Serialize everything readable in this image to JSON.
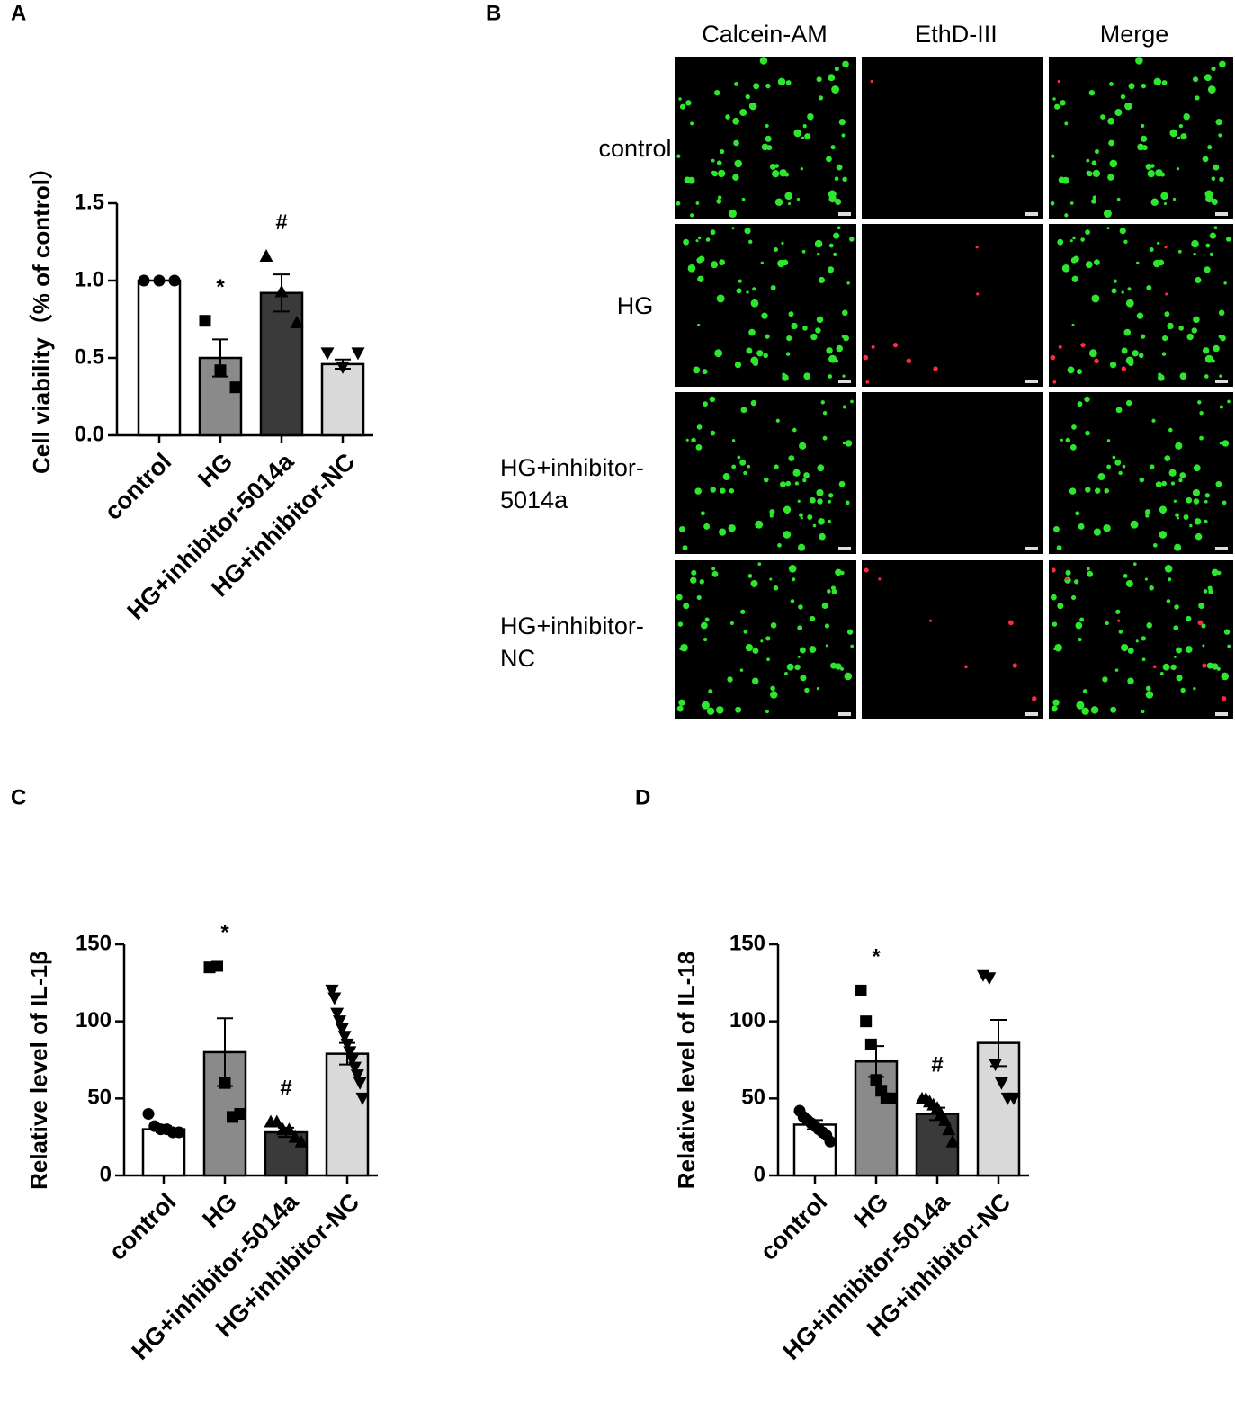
{
  "panels": [
    "A",
    "B",
    "C",
    "D"
  ],
  "chart_data": [
    {
      "type": "bar",
      "ylabel": "Cell viability（% of control）",
      "categories": [
        "control",
        "HG",
        "HG+inhibitor-5014a",
        "HG+inhibitor-NC"
      ],
      "values": [
        1.0,
        0.5,
        0.92,
        0.46
      ],
      "errors": [
        0,
        0.12,
        0.12,
        0.03
      ],
      "points": [
        [
          1,
          1,
          1
        ],
        [
          0.74,
          0.42,
          0.31
        ],
        [
          1.16,
          0.93,
          0.73
        ],
        [
          0.53,
          0.44,
          0.53
        ]
      ],
      "colors": [
        "#ffffff",
        "#8a8a8a",
        "#3a3a3a",
        "#d9d9d9"
      ],
      "markers": [
        "circle",
        "square",
        "triangle-up",
        "triangle-down"
      ],
      "bar_labels": [
        null,
        "*",
        "#",
        null
      ],
      "ylim": [
        0,
        1.5
      ],
      "yticks": [
        {
          "value": 0,
          "label": "0.0"
        },
        {
          "value": 0.5,
          "label": "0.5"
        },
        {
          "value": 1,
          "label": "1.0"
        },
        {
          "value": 1.5,
          "label": "1.5"
        }
      ]
    },
    {
      "type": "bar",
      "ylabel": "Relative level of IL-1β",
      "categories": [
        "control",
        "HG",
        "HG+inhibitor-5014a",
        "HG+inhibitor-NC"
      ],
      "values": [
        30,
        80,
        28,
        79
      ],
      "errors": [
        2,
        22,
        3,
        7
      ],
      "points": [
        [
          40,
          32,
          30,
          30,
          28,
          28
        ],
        [
          135,
          136,
          60,
          38,
          40
        ],
        [
          35,
          35,
          30,
          30,
          25,
          22
        ],
        [
          120,
          115,
          105,
          100,
          95,
          90,
          85,
          80,
          75,
          70,
          65,
          60,
          50
        ]
      ],
      "colors": [
        "#ffffff",
        "#8a8a8a",
        "#3a3a3a",
        "#d9d9d9"
      ],
      "markers": [
        "circle",
        "square",
        "triangle-up",
        "triangle-down"
      ],
      "bar_labels": [
        null,
        "*",
        "#",
        null
      ],
      "ylim": [
        0,
        150
      ],
      "yticks": [
        0,
        50,
        100,
        150
      ]
    },
    {
      "type": "bar",
      "ylabel": "Relative level of IL-18",
      "categories": [
        "control",
        "HG",
        "HG+inhibitor-5014a",
        "HG+inhibitor-NC"
      ],
      "values": [
        33,
        74,
        40,
        86
      ],
      "errors": [
        3,
        10,
        4,
        15
      ],
      "points": [
        [
          42,
          38,
          36,
          34,
          32,
          30,
          28,
          26,
          22
        ],
        [
          120,
          100,
          85,
          62,
          55,
          50,
          50
        ],
        [
          50,
          50,
          48,
          46,
          44,
          40,
          36,
          30,
          22
        ],
        [
          130,
          128,
          72,
          60,
          50,
          50
        ]
      ],
      "colors": [
        "#ffffff",
        "#8a8a8a",
        "#3a3a3a",
        "#d9d9d9"
      ],
      "markers": [
        "circle",
        "square",
        "triangle-up",
        "triangle-down"
      ],
      "bar_labels": [
        null,
        "*",
        "#",
        null
      ],
      "ylim": [
        0,
        150
      ],
      "yticks": [
        0,
        50,
        100,
        150
      ]
    }
  ],
  "image_grid": {
    "columns": [
      "Calcein-AM",
      "EthD-III",
      "Merge"
    ],
    "rows": [
      [
        "control"
      ],
      [
        "HG"
      ],
      [
        "HG+inhibitor-",
        "5014a"
      ],
      [
        "HG+inhibitor-",
        "NC"
      ]
    ]
  }
}
